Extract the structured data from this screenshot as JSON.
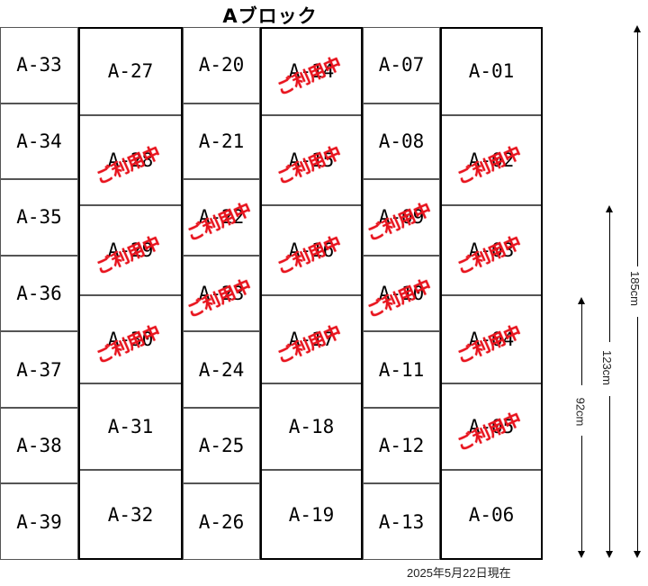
{
  "title": "Aブロック",
  "stamp_text": "ご利用中",
  "date_note": "2025年5月22日現在",
  "colors": {
    "stamp": "#e8141e",
    "border": "#000000"
  },
  "columns": [
    {
      "id": "c1",
      "kind": "small",
      "cells": [
        {
          "label": "A-33",
          "in_use": false
        },
        {
          "label": "A-34",
          "in_use": false
        },
        {
          "label": "A-35",
          "in_use": false
        },
        {
          "label": "A-36",
          "in_use": false
        },
        {
          "label": "A-37",
          "in_use": false
        },
        {
          "label": "A-38",
          "in_use": false
        },
        {
          "label": "A-39",
          "in_use": false
        }
      ]
    },
    {
      "id": "c2",
      "kind": "medium",
      "cells": [
        {
          "label": "A-27",
          "in_use": false
        },
        {
          "label": "A-28",
          "in_use": true
        },
        {
          "label": "A-29",
          "in_use": true
        },
        {
          "label": "A-30",
          "in_use": true
        },
        {
          "label": "A-31",
          "in_use": false
        },
        {
          "label": "A-32",
          "in_use": false
        }
      ]
    },
    {
      "id": "c3",
      "kind": "small",
      "cells": [
        {
          "label": "A-20",
          "in_use": false
        },
        {
          "label": "A-21",
          "in_use": false
        },
        {
          "label": "A-22",
          "in_use": true
        },
        {
          "label": "A-23",
          "in_use": true
        },
        {
          "label": "A-24",
          "in_use": false
        },
        {
          "label": "A-25",
          "in_use": false
        },
        {
          "label": "A-26",
          "in_use": false
        }
      ]
    },
    {
      "id": "c4",
      "kind": "medium",
      "cells": [
        {
          "label": "A-14",
          "in_use": true
        },
        {
          "label": "A-15",
          "in_use": true
        },
        {
          "label": "A-16",
          "in_use": true
        },
        {
          "label": "A-17",
          "in_use": true
        },
        {
          "label": "A-18",
          "in_use": false
        },
        {
          "label": "A-19",
          "in_use": false
        }
      ]
    },
    {
      "id": "c5",
      "kind": "small",
      "cells": [
        {
          "label": "A-07",
          "in_use": false
        },
        {
          "label": "A-08",
          "in_use": false
        },
        {
          "label": "A-09",
          "in_use": true
        },
        {
          "label": "A-10",
          "in_use": true
        },
        {
          "label": "A-11",
          "in_use": false
        },
        {
          "label": "A-12",
          "in_use": false
        },
        {
          "label": "A-13",
          "in_use": false
        }
      ]
    },
    {
      "id": "c6",
      "kind": "medium",
      "cells": [
        {
          "label": "A-01",
          "in_use": false
        },
        {
          "label": "A-02",
          "in_use": true
        },
        {
          "label": "A-03",
          "in_use": true
        },
        {
          "label": "A-04",
          "in_use": true
        },
        {
          "label": "A-05",
          "in_use": true
        },
        {
          "label": "A-06",
          "in_use": false
        }
      ]
    }
  ],
  "dimensions": [
    "185cm",
    "123cm",
    "92cm"
  ]
}
